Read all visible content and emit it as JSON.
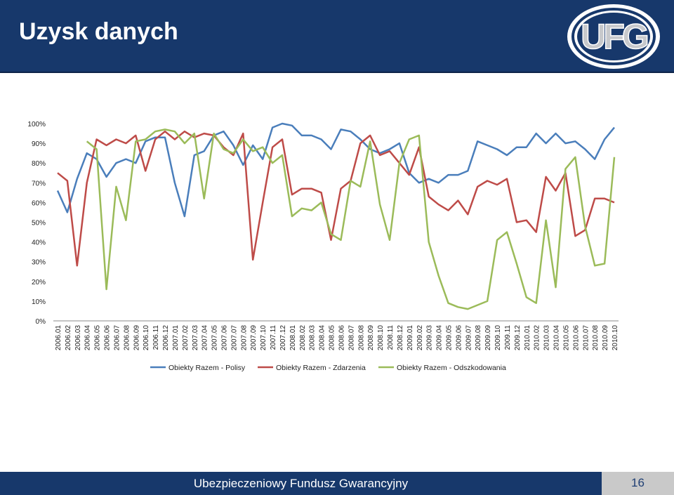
{
  "slide": {
    "title": "Uzysk danych",
    "footer": "Ubezpieczeniowy Fundusz Gwarancyjny",
    "page_number": "16",
    "logo_text": "UFG",
    "colors": {
      "header": "#17386b",
      "page_box": "#c9c9c9",
      "logo_face": "#c7c9cc"
    }
  },
  "chart_data": {
    "type": "line",
    "title": "",
    "xlabel": "",
    "ylabel": "",
    "ylim": [
      0,
      100
    ],
    "yticks": [
      "0%",
      "10%",
      "20%",
      "30%",
      "40%",
      "50%",
      "60%",
      "70%",
      "80%",
      "90%",
      "100%"
    ],
    "grid": false,
    "legend": "bottom",
    "x": [
      "2006.01",
      "2006.02",
      "2006.03",
      "2006.04",
      "2006.05",
      "2006.06",
      "2006.07",
      "2006.08",
      "2006.09",
      "2006.10",
      "2006.11",
      "2006.12",
      "2007.01",
      "2007.02",
      "2007.03",
      "2007.04",
      "2007.05",
      "2007.06",
      "2007.07",
      "2007.08",
      "2007.09",
      "2007.10",
      "2007.11",
      "2007.12",
      "2008.01",
      "2008.02",
      "2008.03",
      "2008.04",
      "2008.05",
      "2008.06",
      "2008.07",
      "2008.08",
      "2008.09",
      "2008.10",
      "2008.11",
      "2008.12",
      "2009.01",
      "2009.02",
      "2009.03",
      "2009.04",
      "2009.05",
      "2009.06",
      "2009.07",
      "2009.08",
      "2009.09",
      "2009.10",
      "2009.11",
      "2009.12",
      "2010.01",
      "2010.02",
      "2010.03",
      "2010.04",
      "2010.05",
      "2010.06",
      "2010.07",
      "2010.08",
      "2010.09",
      "2010.10"
    ],
    "series": [
      {
        "name": "Obiekty Razem - Polisy",
        "color": "#4a7ebb",
        "values": [
          66,
          55,
          72,
          85,
          82,
          73,
          80,
          82,
          80,
          91,
          93,
          93,
          70,
          53,
          84,
          86,
          94,
          96,
          89,
          79,
          89,
          82,
          98,
          100,
          99,
          94,
          94,
          92,
          87,
          97,
          96,
          92,
          87,
          85,
          87,
          90,
          75,
          70,
          72,
          70,
          74,
          74,
          76,
          91,
          89,
          87,
          84,
          88,
          88,
          95,
          90,
          95,
          90,
          91,
          87,
          82,
          92,
          98
        ]
      },
      {
        "name": "Obiekty Razem - Zdarzenia",
        "color": "#be4b48",
        "values": [
          75,
          71,
          28,
          70,
          92,
          89,
          92,
          90,
          94,
          76,
          92,
          96,
          92,
          96,
          93,
          95,
          94,
          88,
          84,
          95,
          31,
          60,
          88,
          92,
          64,
          67,
          67,
          65,
          41,
          67,
          71,
          90,
          94,
          84,
          86,
          80,
          74,
          88,
          63,
          59,
          56,
          61,
          54,
          68,
          71,
          69,
          72,
          50,
          51,
          45,
          73,
          66,
          75,
          43,
          46,
          62,
          62,
          60
        ]
      },
      {
        "name": "Obiekty Razem - Odszkodowania",
        "color": "#9bbb59",
        "values": [
          null,
          null,
          null,
          91,
          87,
          16,
          68,
          51,
          91,
          92,
          96,
          97,
          96,
          90,
          95,
          62,
          95,
          87,
          85,
          92,
          86,
          88,
          80,
          84,
          53,
          57,
          56,
          60,
          44,
          41,
          71,
          68,
          91,
          59,
          41,
          80,
          92,
          94,
          40,
          23,
          9,
          7,
          6,
          8,
          10,
          41,
          45,
          29,
          12,
          9,
          51,
          17,
          77,
          83,
          48,
          28,
          29,
          83
        ]
      }
    ]
  }
}
